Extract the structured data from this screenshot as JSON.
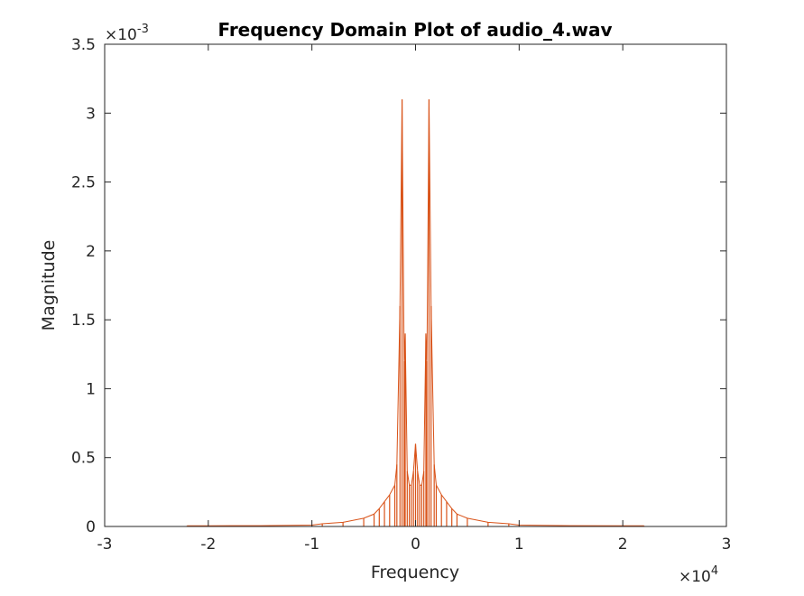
{
  "chart_data": {
    "type": "line",
    "title": "Frequency Domain Plot of audio_4.wav",
    "xlabel": "Frequency",
    "ylabel": "Magnitude",
    "x_exponent": {
      "base": "×10",
      "power": "4"
    },
    "y_exponent": {
      "base": "×10",
      "power": "-3"
    },
    "xlim": [
      -30000,
      30000
    ],
    "ylim": [
      0,
      0.0035
    ],
    "x_ticks": [
      -30000,
      -20000,
      -10000,
      0,
      10000,
      20000,
      30000
    ],
    "x_tick_labels": [
      "-3",
      "-2",
      "-1",
      "0",
      "1",
      "2",
      "3"
    ],
    "y_ticks": [
      0,
      0.0005,
      0.001,
      0.0015,
      0.002,
      0.0025,
      0.003,
      0.0035
    ],
    "y_tick_labels": [
      "0",
      "0.5",
      "1",
      "1.5",
      "2",
      "2.5",
      "3",
      "3.5"
    ],
    "grid": false,
    "line_color": "#D95319",
    "series": [
      {
        "x": [
          -22050,
          -20000,
          -15000,
          -10000,
          -9000,
          -7000,
          -5000,
          -4000,
          -3500,
          -3000,
          -2500,
          -2000,
          -1800,
          -1500,
          -1300,
          -1100,
          -1000,
          -800,
          -600,
          -400,
          -200,
          0,
          200,
          400,
          600,
          800,
          1000,
          1100,
          1300,
          1500,
          1800,
          2000,
          2500,
          3000,
          3500,
          4000,
          5000,
          7000,
          9000,
          10000,
          15000,
          20000,
          22050
        ],
        "y": [
          5e-06,
          5e-06,
          6e-06,
          1e-05,
          2e-05,
          3e-05,
          6e-05,
          9e-05,
          0.00013,
          0.00018,
          0.00023,
          0.0003,
          0.00045,
          0.0016,
          0.0031,
          0.0012,
          0.0014,
          0.0004,
          0.0003,
          0.0003,
          0.0004,
          0.0006,
          0.0004,
          0.0003,
          0.0003,
          0.0004,
          0.0014,
          0.0012,
          0.0031,
          0.0016,
          0.00045,
          0.0003,
          0.00023,
          0.00018,
          0.00013,
          9e-05,
          6e-05,
          3e-05,
          2e-05,
          1e-05,
          6e-06,
          5e-06,
          5e-06
        ]
      }
    ]
  }
}
